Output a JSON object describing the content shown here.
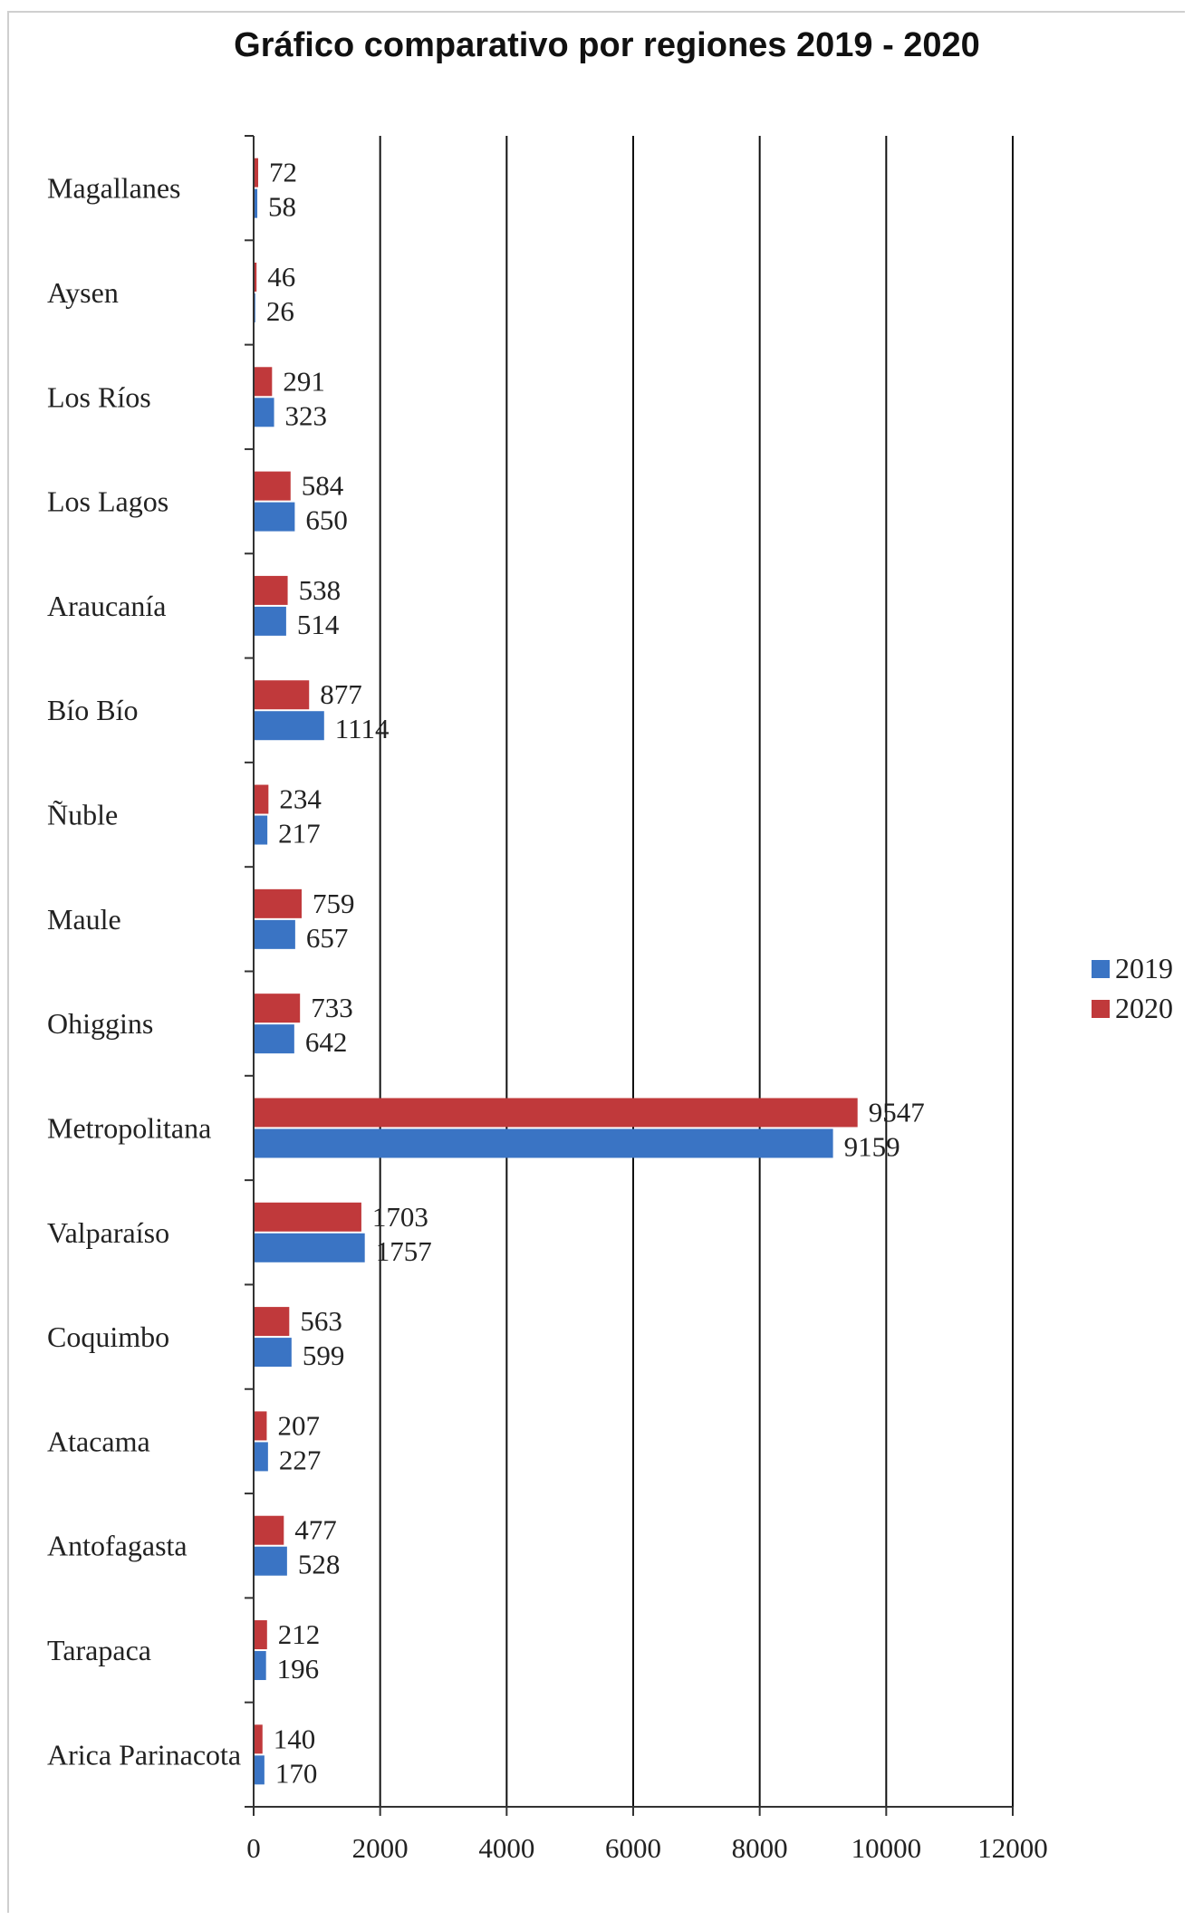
{
  "chart_data": {
    "type": "bar",
    "orientation": "horizontal",
    "title": "Gráfico comparativo por regiones 2019 - 2020",
    "xlabel": "",
    "ylabel": "",
    "xlim": [
      0,
      12000
    ],
    "x_ticks": [
      "0",
      "2000",
      "4000",
      "6000",
      "8000",
      "10000",
      "12000"
    ],
    "grid": "vertical",
    "legend_position": "right",
    "categories": [
      "Magallanes",
      "Aysen",
      "Los Ríos",
      "Los Lagos",
      "Araucanía",
      "Bío Bío",
      "Ñuble",
      "Maule",
      "Ohiggins",
      "Metropolitana",
      "Valparaíso",
      "Coquimbo",
      "Atacama",
      "Antofagasta",
      "Tarapaca",
      "Arica Parinacota"
    ],
    "series": [
      {
        "name": "2020",
        "color": "#c0393b",
        "values": [
          72,
          46,
          291,
          584,
          538,
          877,
          234,
          759,
          733,
          9547,
          1703,
          563,
          207,
          477,
          212,
          140
        ]
      },
      {
        "name": "2019",
        "color": "#3a74c4",
        "values": [
          58,
          26,
          323,
          650,
          514,
          1114,
          217,
          657,
          642,
          9159,
          1757,
          599,
          227,
          528,
          196,
          170
        ]
      }
    ],
    "legend": [
      {
        "name": "2019",
        "color": "#3a74c4"
      },
      {
        "name": "2020",
        "color": "#c0393b"
      }
    ]
  }
}
